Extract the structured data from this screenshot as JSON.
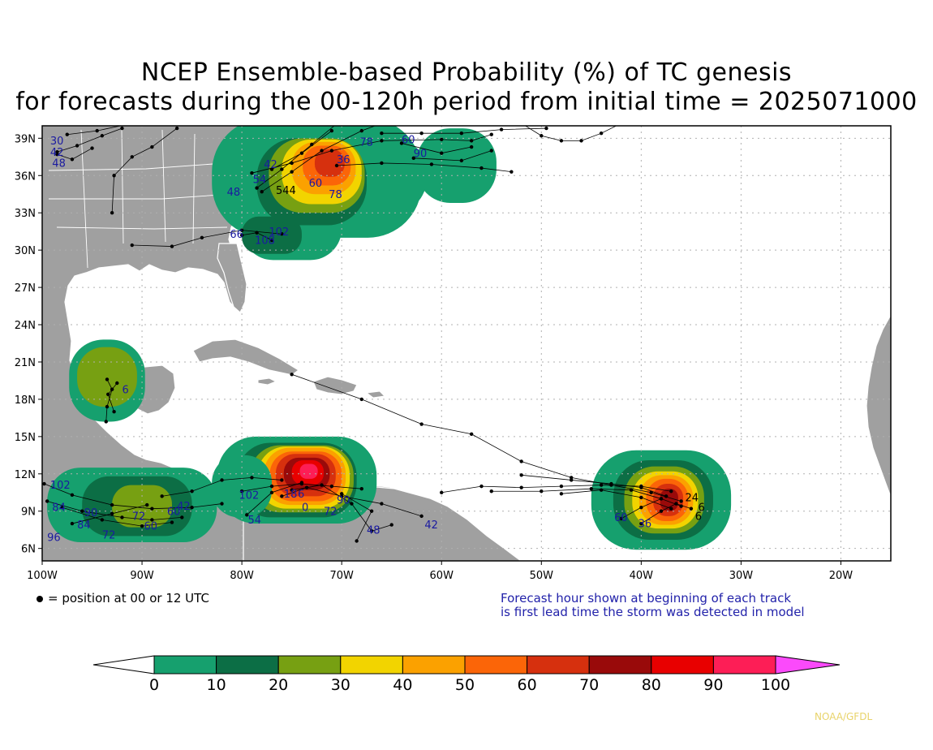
{
  "title": {
    "line1": "NCEP Ensemble-based Probability (%) of TC genesis",
    "line2": "for forecasts during the 00-120h period from initial time = 2025071000"
  },
  "axes": {
    "lat_labels": [
      "39N",
      "36N",
      "33N",
      "30N",
      "27N",
      "24N",
      "21N",
      "18N",
      "15N",
      "12N",
      "9N",
      "6N"
    ],
    "lon_labels": [
      "100W",
      "90W",
      "80W",
      "70W",
      "60W",
      "50W",
      "40W",
      "30W",
      "20W"
    ]
  },
  "notes": {
    "position": "= position at 00 or 12 UTC",
    "forecast_line1": "Forecast hour shown at beginning of each track",
    "forecast_line2": "is first lead time the storm was detected in model",
    "credit": "NOAA/GFDL"
  },
  "colorbar": {
    "ticks": [
      "0",
      "10",
      "20",
      "30",
      "40",
      "50",
      "60",
      "70",
      "80",
      "90",
      "100"
    ],
    "colors": [
      "#ffffff",
      "#16a06e",
      "#0c6e45",
      "#77a012",
      "#f2d400",
      "#fba100",
      "#fb6508",
      "#d6300e",
      "#990a0a",
      "#e80000",
      "#fd1e56",
      "#fb4afb"
    ]
  },
  "track_labels": [
    {
      "text": "30",
      "lon": -99.2,
      "lat": 38.5
    },
    {
      "text": "42",
      "lon": -99.2,
      "lat": 37.6
    },
    {
      "text": "48",
      "lon": -99.0,
      "lat": 36.7
    },
    {
      "text": "42",
      "lon": -77.8,
      "lat": 36.6
    },
    {
      "text": "54",
      "lon": -78.9,
      "lat": 35.4
    },
    {
      "text": "48",
      "lon": -81.5,
      "lat": 34.4
    },
    {
      "text": "544",
      "lon": -76.6,
      "lat": 34.5
    },
    {
      "text": "60",
      "lon": -73.3,
      "lat": 35.1
    },
    {
      "text": "78",
      "lon": -71.3,
      "lat": 34.2
    },
    {
      "text": "36",
      "lon": -70.5,
      "lat": 37.0
    },
    {
      "text": "78",
      "lon": -68.2,
      "lat": 38.4
    },
    {
      "text": "60",
      "lon": -64.0,
      "lat": 38.6
    },
    {
      "text": "90",
      "lon": -62.8,
      "lat": 37.5
    },
    {
      "text": "66",
      "lon": -81.2,
      "lat": 31.0
    },
    {
      "text": "102",
      "lon": -77.3,
      "lat": 31.2
    },
    {
      "text": "108",
      "lon": -78.7,
      "lat": 30.5
    },
    {
      "text": "6",
      "lon": -92.0,
      "lat": 18.5
    },
    {
      "text": "102",
      "lon": -99.2,
      "lat": 10.8
    },
    {
      "text": "84",
      "lon": -99.0,
      "lat": 9.0
    },
    {
      "text": "90",
      "lon": -95.8,
      "lat": 8.6
    },
    {
      "text": "84",
      "lon": -96.5,
      "lat": 7.6
    },
    {
      "text": "72",
      "lon": -94.0,
      "lat": 6.8
    },
    {
      "text": "96",
      "lon": -99.5,
      "lat": 6.6
    },
    {
      "text": "72",
      "lon": -91.0,
      "lat": 8.3
    },
    {
      "text": "60",
      "lon": -89.8,
      "lat": 7.5
    },
    {
      "text": "60",
      "lon": -87.5,
      "lat": 8.7
    },
    {
      "text": "42",
      "lon": -86.5,
      "lat": 9.1
    },
    {
      "text": "102",
      "lon": -80.3,
      "lat": 10.0
    },
    {
      "text": "54",
      "lon": -79.4,
      "lat": 8.0
    },
    {
      "text": "18",
      "lon": -75.8,
      "lat": 10.1
    },
    {
      "text": "6",
      "lon": -74.4,
      "lat": 10.1
    },
    {
      "text": "0",
      "lon": -74.0,
      "lat": 9.0
    },
    {
      "text": "72",
      "lon": -71.8,
      "lat": 8.7
    },
    {
      "text": "90",
      "lon": -70.5,
      "lat": 9.6
    },
    {
      "text": "48",
      "lon": -67.5,
      "lat": 7.2
    },
    {
      "text": "42",
      "lon": -61.7,
      "lat": 7.6
    },
    {
      "text": "60",
      "lon": -42.7,
      "lat": 8.2
    },
    {
      "text": "36",
      "lon": -40.3,
      "lat": 7.7
    },
    {
      "text": "24",
      "lon": -35.6,
      "lat": 9.8
    },
    {
      "text": "6",
      "lon": -34.3,
      "lat": 9.0
    },
    {
      "text": "6",
      "lon": -34.6,
      "lat": 8.3
    }
  ]
}
